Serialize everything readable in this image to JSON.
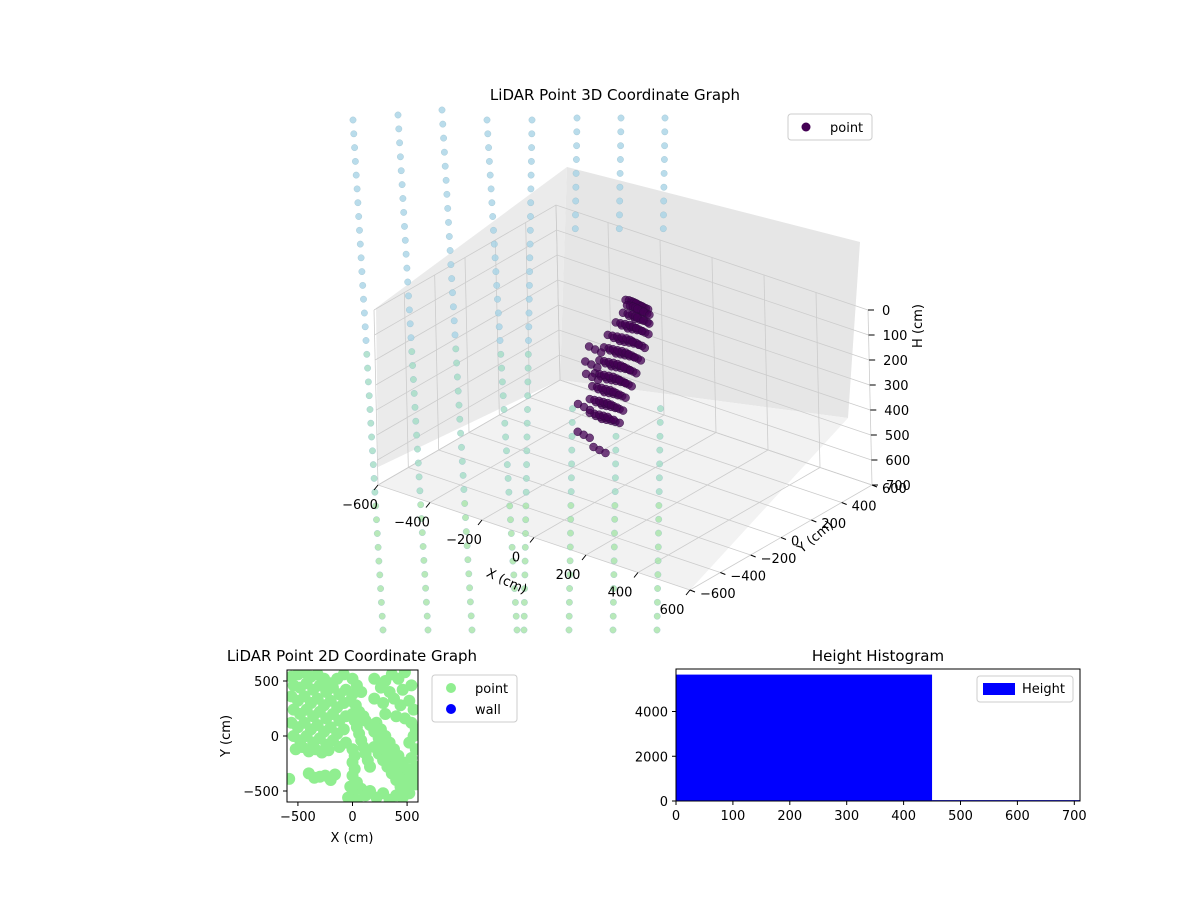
{
  "colors": {
    "point3d": "#440154",
    "point2d": "#90ee90",
    "wall": "#0000ff",
    "hist": "#0000ff",
    "pane": "#f2f2f2",
    "grid": "#cccccc"
  },
  "chart_data": [
    {
      "type": "scatter",
      "projection": "3d",
      "title": "LiDAR Point 3D Coordinate Graph",
      "xlabel": "X (cm)",
      "ylabel": "Y (cm)",
      "zlabel": "H (cm)",
      "xlim": [
        -600,
        600
      ],
      "ylim": [
        -600,
        600
      ],
      "zlim": [
        0,
        700
      ],
      "z_inverted": true,
      "xticks": [
        -600,
        -400,
        -200,
        0,
        200,
        400,
        600
      ],
      "yticks": [
        -600,
        -400,
        -200,
        0,
        200,
        400,
        600
      ],
      "zticks": [
        0,
        100,
        200,
        300,
        400,
        500,
        600,
        700
      ],
      "legend": {
        "entries": [
          "point"
        ],
        "position": "upper-right"
      },
      "grid": true,
      "series": [
        {
          "name": "point",
          "points": [
            [
              -15,
              95,
              10
            ],
            [
              -5,
              100,
              10
            ],
            [
              5,
              100,
              10
            ],
            [
              15,
              98,
              10
            ],
            [
              25,
              96,
              10
            ],
            [
              -10,
              95,
              30
            ],
            [
              0,
              98,
              30
            ],
            [
              10,
              100,
              30
            ],
            [
              20,
              98,
              30
            ],
            [
              30,
              95,
              30
            ],
            [
              -20,
              85,
              60
            ],
            [
              -5,
              90,
              60
            ],
            [
              10,
              95,
              60
            ],
            [
              25,
              90,
              60
            ],
            [
              35,
              85,
              60
            ],
            [
              -40,
              70,
              100
            ],
            [
              -25,
              75,
              100
            ],
            [
              -10,
              80,
              100
            ],
            [
              5,
              85,
              100
            ],
            [
              20,
              82,
              100
            ],
            [
              35,
              78,
              100
            ],
            [
              -60,
              50,
              150
            ],
            [
              -45,
              55,
              150
            ],
            [
              -30,
              60,
              150
            ],
            [
              -15,
              65,
              150
            ],
            [
              0,
              70,
              150
            ],
            [
              15,
              68,
              150
            ],
            [
              30,
              60,
              150
            ],
            [
              -70,
              40,
              200
            ],
            [
              -55,
              45,
              200
            ],
            [
              -40,
              48,
              200
            ],
            [
              -25,
              52,
              200
            ],
            [
              -10,
              56,
              200
            ],
            [
              5,
              55,
              200
            ],
            [
              20,
              50,
              200
            ],
            [
              -80,
              25,
              250
            ],
            [
              -65,
              30,
              250
            ],
            [
              -50,
              35,
              250
            ],
            [
              -35,
              40,
              250
            ],
            [
              -20,
              42,
              250
            ],
            [
              -5,
              40,
              250
            ],
            [
              10,
              35,
              250
            ],
            [
              -90,
              10,
              300
            ],
            [
              -75,
              15,
              300
            ],
            [
              -60,
              20,
              300
            ],
            [
              -45,
              25,
              300
            ],
            [
              -30,
              28,
              300
            ],
            [
              -15,
              25,
              300
            ],
            [
              0,
              20,
              300
            ],
            [
              -95,
              0,
              350
            ],
            [
              -80,
              5,
              350
            ],
            [
              -65,
              10,
              350
            ],
            [
              -50,
              12,
              350
            ],
            [
              -35,
              15,
              350
            ],
            [
              -20,
              12,
              350
            ],
            [
              -100,
              -10,
              400
            ],
            [
              -85,
              -5,
              400
            ],
            [
              -70,
              0,
              400
            ],
            [
              -55,
              2,
              400
            ],
            [
              -40,
              5,
              400
            ],
            [
              -25,
              2,
              400
            ],
            [
              -95,
              -20,
              450
            ],
            [
              -80,
              -15,
              450
            ],
            [
              -65,
              -10,
              450
            ],
            [
              -50,
              -8,
              450
            ],
            [
              -35,
              -5,
              450
            ],
            [
              -110,
              10,
              200
            ],
            [
              -120,
              0,
              260
            ],
            [
              -130,
              20,
              320
            ],
            [
              -140,
              -20,
              430
            ],
            [
              -120,
              -60,
              520
            ],
            [
              -60,
              -60,
              560
            ]
          ]
        },
        {
          "name": "",
          "color_scale": [
            "#a7d3e6",
            "#a3dcc4",
            "#a6e4a8"
          ],
          "points": []
        }
      ]
    },
    {
      "type": "scatter",
      "title": "LiDAR Point 2D Coordinate Graph",
      "xlabel": "X (cm)",
      "ylabel": "Y (cm)",
      "xlim": [
        -600,
        600
      ],
      "ylim": [
        -600,
        600
      ],
      "xticks": [
        -500,
        0,
        500
      ],
      "yticks": [
        -500,
        0,
        500
      ],
      "legend": {
        "entries": [
          "point",
          "wall"
        ],
        "position": "outside-right"
      },
      "series": [
        {
          "name": "point",
          "points": [
            [
              -560,
              540
            ],
            [
              -500,
              560
            ],
            [
              -440,
              580
            ],
            [
              -380,
              540
            ],
            [
              -320,
              560
            ],
            [
              -260,
              520
            ],
            [
              -200,
              480
            ],
            [
              -140,
              520
            ],
            [
              -80,
              560
            ],
            [
              -540,
              460
            ],
            [
              -480,
              440
            ],
            [
              -420,
              480
            ],
            [
              -360,
              420
            ],
            [
              -300,
              460
            ],
            [
              -240,
              400
            ],
            [
              -180,
              440
            ],
            [
              -120,
              380
            ],
            [
              -60,
              420
            ],
            [
              -560,
              360
            ],
            [
              -500,
              320
            ],
            [
              -440,
              360
            ],
            [
              -380,
              300
            ],
            [
              -320,
              340
            ],
            [
              -260,
              280
            ],
            [
              -200,
              320
            ],
            [
              -140,
              260
            ],
            [
              -80,
              300
            ],
            [
              -540,
              240
            ],
            [
              -480,
              200
            ],
            [
              -420,
              240
            ],
            [
              -360,
              180
            ],
            [
              -300,
              220
            ],
            [
              -240,
              160
            ],
            [
              -180,
              200
            ],
            [
              -120,
              140
            ],
            [
              -60,
              180
            ],
            [
              -560,
              120
            ],
            [
              -500,
              80
            ],
            [
              -440,
              120
            ],
            [
              -380,
              60
            ],
            [
              -320,
              100
            ],
            [
              -260,
              40
            ],
            [
              -200,
              80
            ],
            [
              -140,
              20
            ],
            [
              -80,
              60
            ],
            [
              -540,
              0
            ],
            [
              -480,
              -40
            ],
            [
              -420,
              0
            ],
            [
              -360,
              -60
            ],
            [
              -300,
              -20
            ],
            [
              -240,
              -80
            ],
            [
              -180,
              -40
            ],
            [
              -120,
              -100
            ],
            [
              -60,
              -60
            ],
            [
              -520,
              -120
            ],
            [
              -460,
              -100
            ],
            [
              -400,
              -140
            ],
            [
              -340,
              -120
            ],
            [
              -280,
              -150
            ],
            [
              -220,
              -130
            ],
            [
              -580,
              -390
            ],
            [
              -400,
              -340
            ],
            [
              -350,
              -380
            ],
            [
              -300,
              -370
            ],
            [
              -250,
              -360
            ],
            [
              -200,
              -400
            ],
            [
              -160,
              -350
            ],
            [
              0,
              520
            ],
            [
              40,
              460
            ],
            [
              80,
              400
            ],
            [
              0,
              380
            ],
            [
              -20,
              320
            ],
            [
              30,
              280
            ],
            [
              60,
              220
            ],
            [
              100,
              180
            ],
            [
              120,
              140
            ],
            [
              160,
              100
            ],
            [
              0,
              200
            ],
            [
              20,
              140
            ],
            [
              40,
              80
            ],
            [
              60,
              20
            ],
            [
              80,
              -40
            ],
            [
              100,
              -100
            ],
            [
              120,
              -160
            ],
            [
              140,
              -220
            ],
            [
              160,
              -280
            ],
            [
              200,
              40
            ],
            [
              240,
              -20
            ],
            [
              280,
              -80
            ],
            [
              320,
              -140
            ],
            [
              360,
              -200
            ],
            [
              400,
              -260
            ],
            [
              440,
              -320
            ],
            [
              480,
              -380
            ],
            [
              520,
              -440
            ],
            [
              200,
              -100
            ],
            [
              240,
              -160
            ],
            [
              280,
              -220
            ],
            [
              320,
              -280
            ],
            [
              360,
              -340
            ],
            [
              400,
              -400
            ],
            [
              440,
              -460
            ],
            [
              480,
              -500
            ],
            [
              220,
              120
            ],
            [
              260,
              60
            ],
            [
              300,
              0
            ],
            [
              340,
              -60
            ],
            [
              380,
              -120
            ],
            [
              420,
              -180
            ],
            [
              460,
              -240
            ],
            [
              500,
              -300
            ],
            [
              540,
              -360
            ],
            [
              0,
              -120
            ],
            [
              20,
              -180
            ],
            [
              0,
              -240
            ],
            [
              20,
              -300
            ],
            [
              0,
              -360
            ],
            [
              40,
              -420
            ],
            [
              80,
              -480
            ],
            [
              120,
              -540
            ],
            [
              160,
              -500
            ],
            [
              -20,
              -460
            ],
            [
              0,
              -520
            ],
            [
              -40,
              -560
            ],
            [
              40,
              -580
            ],
            [
              0,
              -600
            ],
            [
              200,
              520
            ],
            [
              300,
              500
            ],
            [
              360,
              560
            ],
            [
              420,
              520
            ],
            [
              480,
              580
            ],
            [
              540,
              460
            ],
            [
              260,
              440
            ],
            [
              340,
              400
            ],
            [
              460,
              420
            ],
            [
              200,
              340
            ],
            [
              280,
              300
            ],
            [
              380,
              340
            ],
            [
              440,
              280
            ],
            [
              520,
              320
            ],
            [
              560,
              240
            ],
            [
              300,
              200
            ],
            [
              400,
              180
            ],
            [
              480,
              160
            ],
            [
              540,
              120
            ],
            [
              580,
              60
            ],
            [
              560,
              0
            ],
            [
              520,
              -60
            ],
            [
              580,
              -120
            ],
            [
              540,
              -200
            ],
            [
              580,
              -280
            ],
            [
              560,
              -360
            ],
            [
              580,
              -440
            ],
            [
              520,
              -520
            ],
            [
              460,
              -560
            ],
            [
              400,
              -540
            ],
            [
              340,
              -580
            ],
            [
              280,
              -520
            ],
            [
              220,
              -560
            ]
          ]
        },
        {
          "name": "wall",
          "points": []
        }
      ]
    },
    {
      "type": "bar",
      "subtype": "histogram",
      "title": "Height Histogram",
      "xlim": [
        0,
        710
      ],
      "ylim": [
        0,
        5900
      ],
      "xticks": [
        0,
        100,
        200,
        300,
        400,
        500,
        600,
        700
      ],
      "yticks": [
        0,
        2000,
        4000
      ],
      "legend": {
        "entries": [
          "Height"
        ],
        "position": "upper-right"
      },
      "series": [
        {
          "name": "Height",
          "bins": [
            [
              0,
              450,
              5650
            ],
            [
              450,
              710,
              40
            ]
          ]
        }
      ]
    }
  ]
}
